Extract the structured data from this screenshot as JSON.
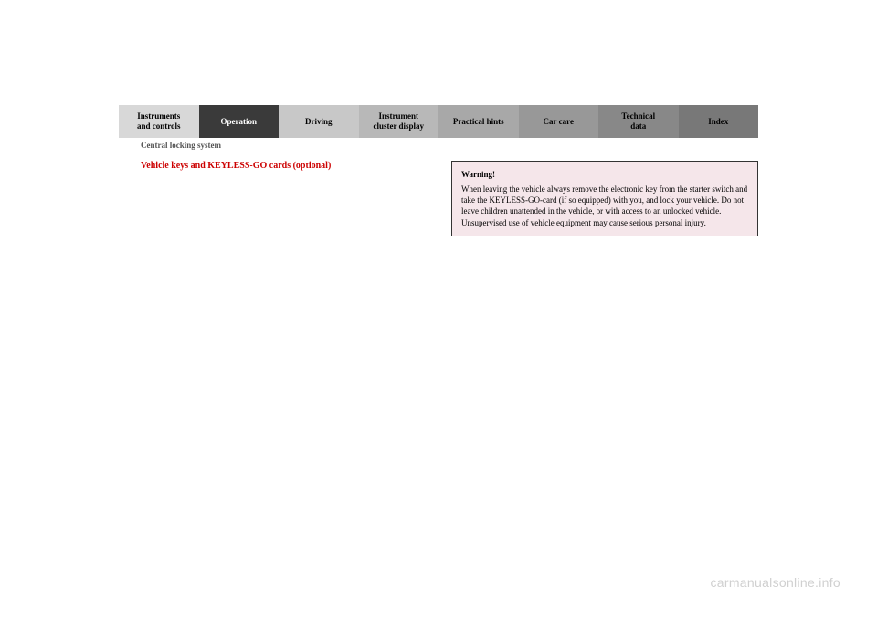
{
  "tabs": [
    {
      "label": "Instruments\nand controls"
    },
    {
      "label": "Operation"
    },
    {
      "label": "Driving"
    },
    {
      "label": "Instrument\ncluster display"
    },
    {
      "label": "Practical hints"
    },
    {
      "label": "Car care"
    },
    {
      "label": "Technical\ndata"
    },
    {
      "label": "Index"
    }
  ],
  "breadcrumb": "Central locking system",
  "section_heading": "Vehicle keys and KEYLESS-GO cards (optional)",
  "warning": {
    "title": "Warning!",
    "body": "When leaving the vehicle always remove the electronic key from the starter switch and take the KEYLESS-GO-card (if so equipped) with you, and lock your vehicle. Do not leave children unattended in the vehicle, or with access to an unlocked vehicle. Unsupervised use of vehicle equipment may cause serious personal injury."
  },
  "watermark": "carmanualsonline.info"
}
